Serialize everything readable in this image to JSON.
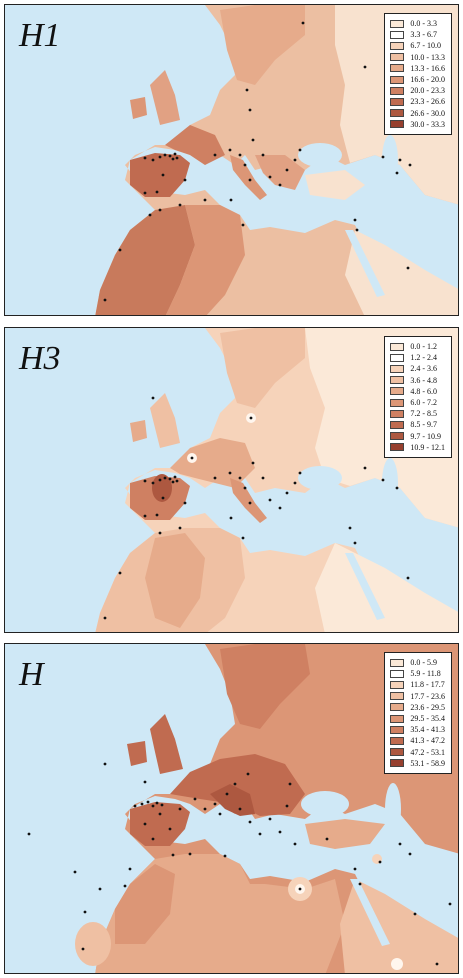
{
  "panels": [
    {
      "label": "H1",
      "legend": [
        "0.0 - 3.3",
        "3.3 - 6.7",
        "6.7 - 10.0",
        "10.0 - 13.3",
        "13.3 - 16.6",
        "16.6 - 20.0",
        "20.0 - 23.3",
        "23.3 - 26.6",
        "26.6 - 30.0",
        "30.0 - 33.3"
      ]
    },
    {
      "label": "H3",
      "legend": [
        "0.0 - 1.2",
        "1.2 - 2.4",
        "2.4 - 3.6",
        "3.6 - 4.8",
        "4.8 - 6.0",
        "6.0 - 7.2",
        "7.2 - 8.5",
        "8.5 - 9.7",
        "9.7 - 10.9",
        "10.9 - 12.1"
      ]
    },
    {
      "label": "H",
      "legend": [
        "0.0 - 5.9",
        "5.9 - 11.8",
        "11.8 - 17.7",
        "17.7 - 23.6",
        "23.6 - 29.5",
        "29.5 - 35.4",
        "35.4 - 41.3",
        "41.3 - 47.2",
        "47.2 - 53.1",
        "53.1 - 58.9"
      ]
    }
  ],
  "legend_colors": [
    "#fbe9d8",
    "#ffffff",
    "#f6d3ba",
    "#efc0a3",
    "#e6ab8b",
    "#dc9676",
    "#cf8062",
    "#c06b50",
    "#ad5840",
    "#963f2e"
  ],
  "sea_color": "#cfe8f6"
}
